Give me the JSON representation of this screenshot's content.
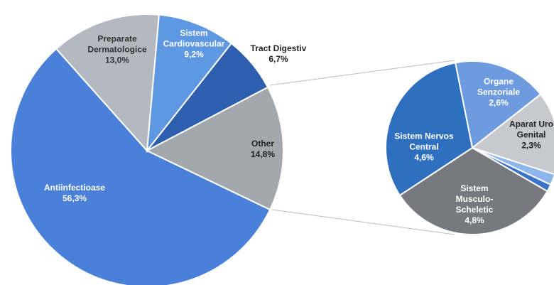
{
  "chart_data": {
    "type": "pie-of-pie",
    "categories": [
      "Antiinfectioase",
      "Preparate Dermatologice",
      "Sistem Cardiovascular",
      "Tract Digestiv",
      "Other"
    ],
    "values": [
      56.3,
      13.0,
      9.2,
      6.7,
      14.8
    ],
    "value_labels": [
      "56,3%",
      "13,0%",
      "9,2%",
      "6,7%",
      "14,8%"
    ],
    "colors": [
      "#4a80d8",
      "#b4b8c0",
      "#5e98e2",
      "#2d5fae",
      "#a3a7ae"
    ],
    "secondary": {
      "categories": [
        "Organe Senzoriale",
        "Aparat Uro Genital",
        null,
        null,
        "Sistem Musculo-Scheletic",
        "Sistem Nervos Central"
      ],
      "values": [
        2.6,
        2.3,
        0.3,
        0.2,
        4.8,
        4.6
      ],
      "value_labels": [
        "2,6%",
        "2,3%",
        null,
        null,
        "4,8%",
        "4,6%"
      ],
      "colors": [
        "#6e9be0",
        "#c6c9ce",
        "#8cb6ec",
        "#3c73c8",
        "#76797f",
        "#2f6fc0"
      ]
    }
  }
}
